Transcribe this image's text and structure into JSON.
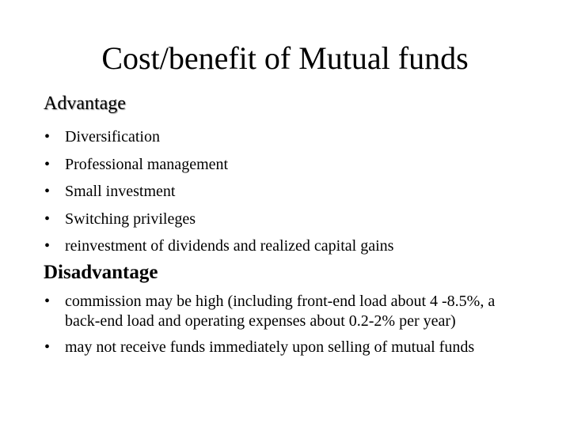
{
  "slide": {
    "title": "Cost/benefit of Mutual funds",
    "advantage": {
      "heading": "Advantage",
      "items": [
        "Diversification",
        "Professional management",
        "Small investment",
        "Switching privileges",
        "reinvestment of dividends and realized capital gains"
      ]
    },
    "disadvantage": {
      "heading": "Disadvantage",
      "items": [
        "commission may be high (including front-end load about 4 -8.5%, a back-end load and operating expenses about 0.2-2% per year)",
        " may not receive funds immediately upon selling of mutual funds"
      ]
    },
    "bullet_glyph": "•"
  }
}
